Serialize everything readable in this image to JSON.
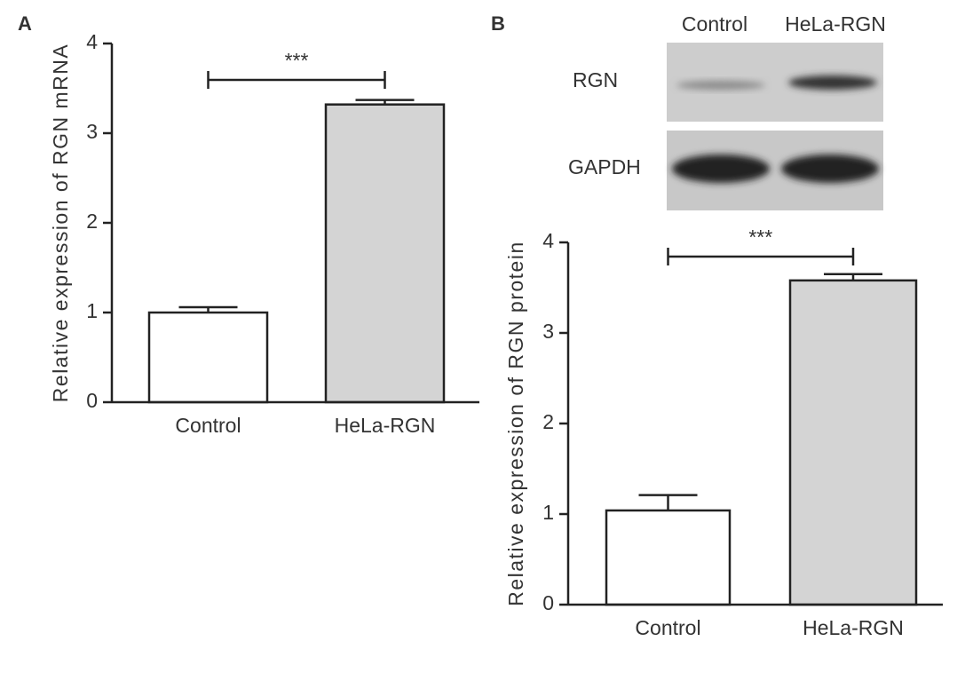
{
  "chart_data": [
    {
      "type": "bar",
      "panel": "A",
      "ylabel": "Relative expression of RGN mRNA",
      "categories": [
        "Control",
        "HeLa-RGN"
      ],
      "values": [
        1.0,
        3.32
      ],
      "errors": [
        0.06,
        0.05
      ],
      "colors": [
        "#ffffff",
        "#d4d4d4"
      ],
      "ylim": [
        0,
        4
      ],
      "yticks": [
        0,
        1,
        2,
        3,
        4
      ],
      "annotation": "***"
    },
    {
      "type": "bar",
      "panel": "B",
      "ylabel": "Relative expression of RGN protein",
      "categories": [
        "Control",
        "HeLa-RGN"
      ],
      "values": [
        1.04,
        3.58
      ],
      "errors": [
        0.17,
        0.07
      ],
      "colors": [
        "#ffffff",
        "#d4d4d4"
      ],
      "ylim": [
        0,
        4
      ],
      "yticks": [
        0,
        1,
        2,
        3,
        4
      ],
      "annotation": "***"
    }
  ],
  "blot": {
    "lanes": [
      "Control",
      "HeLa-RGN"
    ],
    "rows": [
      "RGN",
      "GAPDH"
    ]
  }
}
